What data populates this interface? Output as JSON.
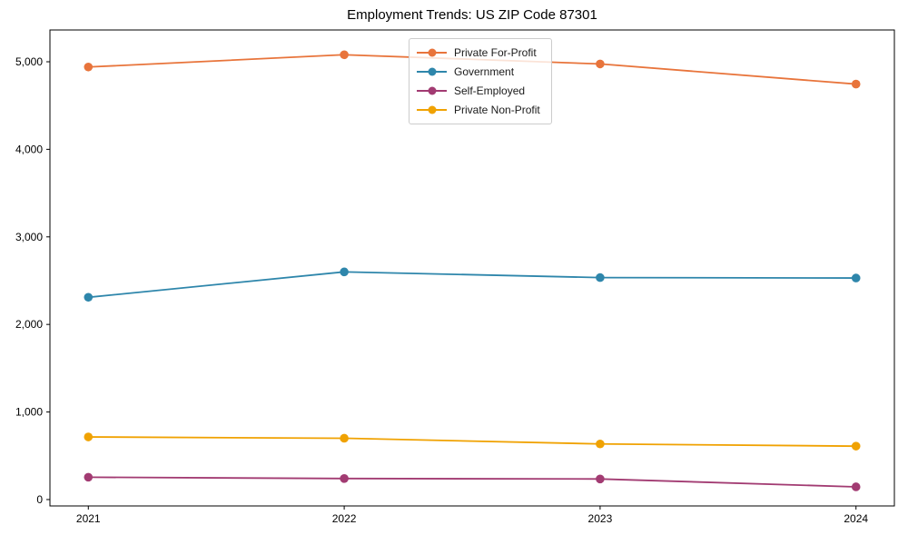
{
  "title": "Employment Trends: US ZIP Code 87301",
  "chart_data": {
    "type": "line",
    "title": "Employment Trends: US ZIP Code 87301",
    "xlabel": "",
    "ylabel": "",
    "x": [
      2021,
      2022,
      2023,
      2024
    ],
    "x_tick_labels": [
      "2021",
      "2022",
      "2023",
      "2024"
    ],
    "yticks": [
      0,
      1000,
      2000,
      3000,
      4000,
      5000
    ],
    "ytick_labels": [
      "0",
      "1,000",
      "2,000",
      "3,000",
      "4,000",
      "5,000"
    ],
    "xlim": [
      2020.85,
      2024.15
    ],
    "ylim": [
      -73,
      5363
    ],
    "grid": false,
    "legend_position": "upper center",
    "marker": "circle",
    "series": [
      {
        "name": "Private For-Profit",
        "color": "#E8743B",
        "values": [
          4940,
          5080,
          4975,
          4745
        ]
      },
      {
        "name": "Government",
        "color": "#2E86AB",
        "values": [
          2310,
          2600,
          2535,
          2530
        ]
      },
      {
        "name": "Self-Employed",
        "color": "#A23B72",
        "values": [
          255,
          240,
          235,
          145
        ]
      },
      {
        "name": "Private Non-Profit",
        "color": "#F0A202",
        "values": [
          715,
          700,
          635,
          610
        ]
      }
    ]
  }
}
